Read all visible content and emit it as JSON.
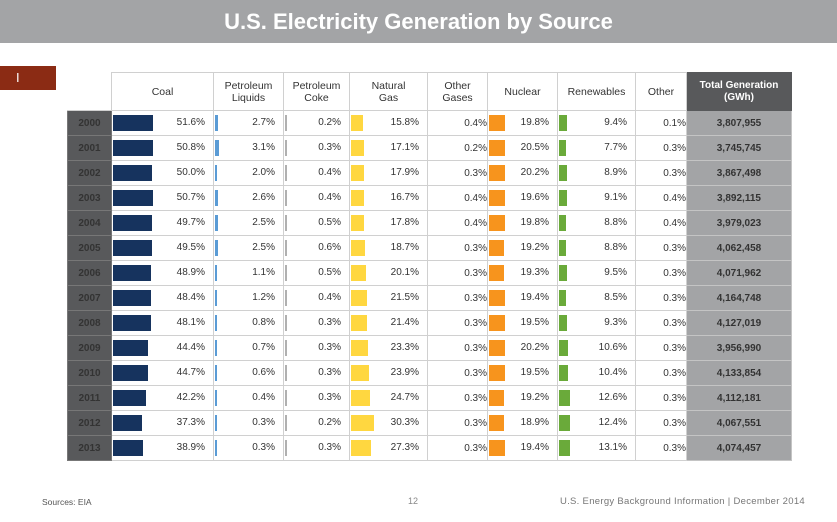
{
  "title": "U.S. Electricity Generation by Source",
  "marker": "I",
  "headers": {
    "coal": "Coal",
    "petroleum_liquids": [
      "Petroleum",
      "Liquids"
    ],
    "petroleum_coke": [
      "Petroleum",
      "Coke"
    ],
    "natural_gas": [
      "Natural",
      "Gas"
    ],
    "other_gases": [
      "Other",
      "Gases"
    ],
    "nuclear": "Nuclear",
    "renewables": "Renewables",
    "other": "Other",
    "total": [
      "Total Generation",
      "(GWh)"
    ]
  },
  "colors": {
    "coal": "#16335e",
    "petroleum_liquids": "#5a9bd5",
    "petroleum_coke": "#b0b0b0",
    "natural_gas": "#ffd740",
    "nuclear": "#f7941d",
    "renewables": "#6aaa3a"
  },
  "rows": [
    {
      "year": "2000",
      "coal": "51.6%",
      "petroleum_liquids": "2.7%",
      "petroleum_coke": "0.2%",
      "natural_gas": "15.8%",
      "other_gases": "0.4%",
      "nuclear": "19.8%",
      "renewables": "9.4%",
      "other": "0.1%",
      "total": "3,807,955"
    },
    {
      "year": "2001",
      "coal": "50.8%",
      "petroleum_liquids": "3.1%",
      "petroleum_coke": "0.3%",
      "natural_gas": "17.1%",
      "other_gases": "0.2%",
      "nuclear": "20.5%",
      "renewables": "7.7%",
      "other": "0.3%",
      "total": "3,745,745"
    },
    {
      "year": "2002",
      "coal": "50.0%",
      "petroleum_liquids": "2.0%",
      "petroleum_coke": "0.4%",
      "natural_gas": "17.9%",
      "other_gases": "0.3%",
      "nuclear": "20.2%",
      "renewables": "8.9%",
      "other": "0.3%",
      "total": "3,867,498"
    },
    {
      "year": "2003",
      "coal": "50.7%",
      "petroleum_liquids": "2.6%",
      "petroleum_coke": "0.4%",
      "natural_gas": "16.7%",
      "other_gases": "0.4%",
      "nuclear": "19.6%",
      "renewables": "9.1%",
      "other": "0.4%",
      "total": "3,892,115"
    },
    {
      "year": "2004",
      "coal": "49.7%",
      "petroleum_liquids": "2.5%",
      "petroleum_coke": "0.5%",
      "natural_gas": "17.8%",
      "other_gases": "0.4%",
      "nuclear": "19.8%",
      "renewables": "8.8%",
      "other": "0.4%",
      "total": "3,979,023"
    },
    {
      "year": "2005",
      "coal": "49.5%",
      "petroleum_liquids": "2.5%",
      "petroleum_coke": "0.6%",
      "natural_gas": "18.7%",
      "other_gases": "0.3%",
      "nuclear": "19.2%",
      "renewables": "8.8%",
      "other": "0.3%",
      "total": "4,062,458"
    },
    {
      "year": "2006",
      "coal": "48.9%",
      "petroleum_liquids": "1.1%",
      "petroleum_coke": "0.5%",
      "natural_gas": "20.1%",
      "other_gases": "0.3%",
      "nuclear": "19.3%",
      "renewables": "9.5%",
      "other": "0.3%",
      "total": "4,071,962"
    },
    {
      "year": "2007",
      "coal": "48.4%",
      "petroleum_liquids": "1.2%",
      "petroleum_coke": "0.4%",
      "natural_gas": "21.5%",
      "other_gases": "0.3%",
      "nuclear": "19.4%",
      "renewables": "8.5%",
      "other": "0.3%",
      "total": "4,164,748"
    },
    {
      "year": "2008",
      "coal": "48.1%",
      "petroleum_liquids": "0.8%",
      "petroleum_coke": "0.3%",
      "natural_gas": "21.4%",
      "other_gases": "0.3%",
      "nuclear": "19.5%",
      "renewables": "9.3%",
      "other": "0.3%",
      "total": "4,127,019"
    },
    {
      "year": "2009",
      "coal": "44.4%",
      "petroleum_liquids": "0.7%",
      "petroleum_coke": "0.3%",
      "natural_gas": "23.3%",
      "other_gases": "0.3%",
      "nuclear": "20.2%",
      "renewables": "10.6%",
      "other": "0.3%",
      "total": "3,956,990"
    },
    {
      "year": "2010",
      "coal": "44.7%",
      "petroleum_liquids": "0.6%",
      "petroleum_coke": "0.3%",
      "natural_gas": "23.9%",
      "other_gases": "0.3%",
      "nuclear": "19.5%",
      "renewables": "10.4%",
      "other": "0.3%",
      "total": "4,133,854"
    },
    {
      "year": "2011",
      "coal": "42.2%",
      "petroleum_liquids": "0.4%",
      "petroleum_coke": "0.3%",
      "natural_gas": "24.7%",
      "other_gases": "0.3%",
      "nuclear": "19.2%",
      "renewables": "12.6%",
      "other": "0.3%",
      "total": "4,112,181"
    },
    {
      "year": "2012",
      "coal": "37.3%",
      "petroleum_liquids": "0.3%",
      "petroleum_coke": "0.2%",
      "natural_gas": "30.3%",
      "other_gases": "0.3%",
      "nuclear": "18.9%",
      "renewables": "12.4%",
      "other": "0.3%",
      "total": "4,067,551"
    },
    {
      "year": "2013",
      "coal": "38.9%",
      "petroleum_liquids": "0.3%",
      "petroleum_coke": "0.3%",
      "natural_gas": "27.3%",
      "other_gases": "0.3%",
      "nuclear": "19.4%",
      "renewables": "13.1%",
      "other": "0.3%",
      "total": "4,074,457"
    }
  ],
  "footer": {
    "source": "Sources: EIA",
    "page": "12",
    "right": "U.S. Energy Background Information  |  December 2014"
  }
}
